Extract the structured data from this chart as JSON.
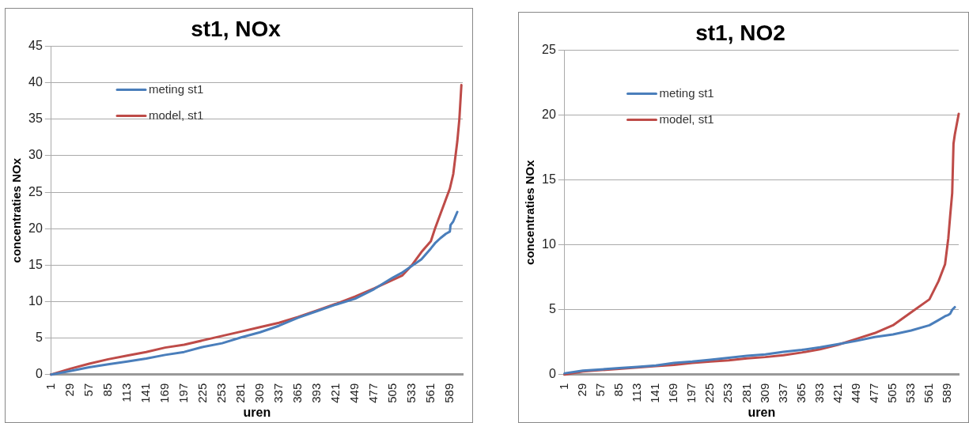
{
  "chart_data": [
    {
      "type": "line",
      "title": "st1, NOx",
      "xlabel": "uren",
      "ylabel": "concentraties NOx",
      "xlim": [
        1,
        608
      ],
      "xticks": [
        1,
        29,
        57,
        85,
        113,
        141,
        169,
        197,
        225,
        253,
        281,
        309,
        337,
        365,
        393,
        421,
        449,
        477,
        505,
        533,
        561,
        589
      ],
      "ylim": [
        0,
        45
      ],
      "yticks": [
        0,
        5,
        10,
        15,
        20,
        25,
        30,
        35,
        40,
        45
      ],
      "grid": "y",
      "legend": "top left",
      "marker": "none",
      "line_style": "solid",
      "series": [
        {
          "name": "meting st1",
          "color": "#4a7ebb",
          "x": [
            1,
            29,
            57,
            85,
            113,
            141,
            169,
            197,
            225,
            253,
            281,
            309,
            337,
            365,
            393,
            421,
            449,
            477,
            505,
            519,
            533,
            547,
            561,
            567,
            575,
            583,
            589,
            590,
            594,
            600
          ],
          "values": [
            0,
            0.5,
            1.0,
            1.4,
            1.8,
            2.2,
            2.7,
            3.1,
            3.8,
            4.3,
            5.1,
            5.8,
            6.7,
            7.8,
            8.7,
            9.6,
            10.4,
            11.7,
            13.3,
            14.0,
            14.9,
            15.8,
            17.3,
            18.0,
            18.7,
            19.3,
            19.6,
            20.5,
            21.0,
            22.3
          ]
        },
        {
          "name": "model, st1",
          "color": "#be4b48",
          "x": [
            1,
            29,
            57,
            85,
            113,
            141,
            169,
            197,
            225,
            253,
            281,
            309,
            337,
            365,
            393,
            421,
            449,
            477,
            505,
            519,
            533,
            547,
            561,
            567,
            575,
            583,
            589,
            594,
            600,
            603,
            606
          ],
          "values": [
            0,
            0.8,
            1.5,
            2.1,
            2.6,
            3.1,
            3.7,
            4.1,
            4.7,
            5.3,
            5.9,
            6.5,
            7.1,
            7.9,
            8.8,
            9.7,
            10.7,
            11.8,
            13.0,
            13.6,
            15.0,
            16.8,
            18.3,
            20.0,
            22.0,
            24.0,
            25.5,
            27.5,
            32.0,
            35.0,
            39.7
          ]
        }
      ]
    },
    {
      "type": "line",
      "title": "st1, NO2",
      "xlabel": "uren",
      "ylabel": "concentraties NOx",
      "xlim": [
        1,
        606
      ],
      "xticks": [
        1,
        29,
        57,
        85,
        113,
        141,
        169,
        197,
        225,
        253,
        281,
        309,
        337,
        365,
        393,
        421,
        449,
        477,
        505,
        533,
        561,
        589
      ],
      "ylim": [
        0,
        25
      ],
      "yticks": [
        0,
        5,
        10,
        15,
        20,
        25
      ],
      "grid": "y",
      "legend": "top left",
      "marker": "none",
      "line_style": "solid",
      "series": [
        {
          "name": "meting st1",
          "color": "#4a7ebb",
          "x": [
            1,
            29,
            57,
            85,
            113,
            141,
            169,
            197,
            225,
            253,
            281,
            309,
            337,
            365,
            393,
            421,
            449,
            477,
            505,
            533,
            561,
            575,
            585,
            590,
            593,
            596,
            600
          ],
          "values": [
            0.1,
            0.3,
            0.4,
            0.5,
            0.6,
            0.7,
            0.9,
            1.0,
            1.15,
            1.3,
            1.45,
            1.55,
            1.75,
            1.9,
            2.1,
            2.35,
            2.6,
            2.9,
            3.1,
            3.4,
            3.8,
            4.2,
            4.5,
            4.6,
            4.7,
            5.0,
            5.2
          ]
        },
        {
          "name": "model, st1",
          "color": "#be4b48",
          "x": [
            1,
            29,
            57,
            85,
            113,
            141,
            169,
            197,
            225,
            253,
            281,
            309,
            337,
            365,
            393,
            421,
            449,
            477,
            505,
            533,
            561,
            575,
            585,
            590,
            593,
            596,
            598,
            600,
            606
          ],
          "values": [
            0,
            0.25,
            0.35,
            0.45,
            0.55,
            0.65,
            0.75,
            0.9,
            1.0,
            1.1,
            1.25,
            1.35,
            1.5,
            1.7,
            1.95,
            2.3,
            2.75,
            3.2,
            3.8,
            4.8,
            5.8,
            7.2,
            8.5,
            10.5,
            12.3,
            14.0,
            17.8,
            18.5,
            20.1
          ]
        }
      ]
    }
  ]
}
